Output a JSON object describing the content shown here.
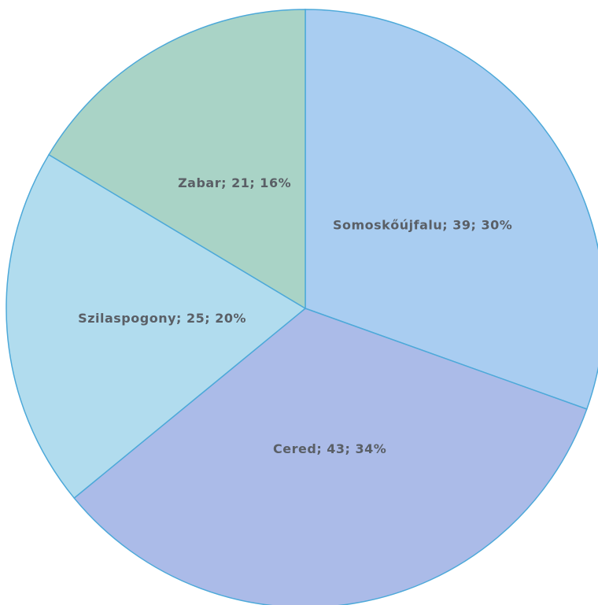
{
  "chart_data": {
    "type": "pie",
    "categories": [
      "Somoskőújfalu",
      "Cered",
      "Szilaspogony",
      "Zabar"
    ],
    "values": [
      39,
      43,
      25,
      21
    ],
    "value_labels": [
      "Somoskőújfalu; 39; 30%",
      "Cered; 43; 34%",
      "Szilaspogony; 25; 20%",
      "Zabar; 21; 16%"
    ],
    "colors": [
      "#a9cdf1",
      "#abbbe8",
      "#b1dcee",
      "#a9d3c6"
    ]
  }
}
